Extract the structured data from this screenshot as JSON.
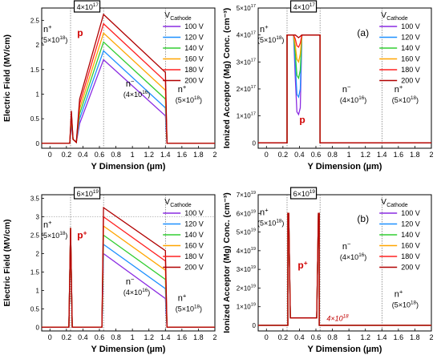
{
  "chart_data": [
    {
      "type": "line",
      "panel": "top-left",
      "xlabel": "Y Dimension (µm)",
      "ylabel": "Electric Field (MV/cm)",
      "xlim": [
        -0.1,
        2.0
      ],
      "ylim": [
        -0.1,
        2.75
      ],
      "xticks": [
        "0",
        "0.2",
        "0.4",
        "0.6",
        "0.8",
        "1",
        "1.2",
        "1.4",
        "1.6",
        "1.8",
        "2"
      ],
      "yticks": [
        "0",
        "0.5",
        "1",
        "1.5",
        "2",
        "2.5"
      ],
      "ytick_values": [
        0,
        0.5,
        1,
        1.5,
        2,
        2.5
      ],
      "grid": false,
      "legend_title": "V",
      "legend_title_sub": "Cathode",
      "legend_placement": "right",
      "vlines": [
        0.25,
        0.65,
        1.4
      ],
      "doping_box": {
        "base": "4×10",
        "exp": "17"
      },
      "region_labels": [
        {
          "text": "n",
          "sup": "+",
          "line2": "(5×10",
          "line2_exp": "18",
          "line2_end": ")"
        },
        {
          "text": "p",
          "sup": "",
          "line2": "",
          "line2_exp": "",
          "line2_end": ""
        },
        {
          "text": "n",
          "sup": "−",
          "line2": "(4×10",
          "line2_exp": "16",
          "line2_end": ")"
        },
        {
          "text": "n",
          "sup": "+",
          "line2": "(5×10",
          "line2_exp": "18",
          "line2_end": ")"
        }
      ],
      "series": [
        {
          "name": "100 V",
          "color": "#8a2be2",
          "x": [
            -0.1,
            0.24,
            0.26,
            0.28,
            0.32,
            0.36,
            0.65,
            1.4,
            1.42,
            2.0
          ],
          "y": [
            0,
            0,
            0.38,
            0.08,
            0.02,
            0.4,
            1.7,
            0.56,
            0,
            0
          ]
        },
        {
          "name": "120 V",
          "color": "#1e90ff",
          "x": [
            -0.1,
            0.24,
            0.26,
            0.28,
            0.32,
            0.36,
            0.65,
            1.4,
            1.42,
            2.0
          ],
          "y": [
            0,
            0,
            0.45,
            0.08,
            0.02,
            0.5,
            1.88,
            0.72,
            0,
            0
          ]
        },
        {
          "name": "140 V",
          "color": "#32cd32",
          "x": [
            -0.1,
            0.24,
            0.26,
            0.28,
            0.32,
            0.36,
            0.65,
            1.4,
            1.42,
            2.0
          ],
          "y": [
            0,
            0,
            0.52,
            0.08,
            0.02,
            0.6,
            2.06,
            0.9,
            0,
            0
          ]
        },
        {
          "name": "160 V",
          "color": "#ffa500",
          "x": [
            -0.1,
            0.24,
            0.26,
            0.28,
            0.32,
            0.36,
            0.65,
            1.4,
            1.42,
            2.0
          ],
          "y": [
            0,
            0,
            0.58,
            0.08,
            0.02,
            0.7,
            2.24,
            1.08,
            0,
            0
          ]
        },
        {
          "name": "180 V",
          "color": "#ff2020",
          "x": [
            -0.1,
            0.24,
            0.26,
            0.28,
            0.32,
            0.36,
            0.65,
            1.4,
            1.42,
            2.0
          ],
          "y": [
            0,
            0,
            0.63,
            0.08,
            0.02,
            0.8,
            2.43,
            1.26,
            0,
            0
          ]
        },
        {
          "name": "200 V",
          "color": "#b00000",
          "x": [
            -0.1,
            0.24,
            0.26,
            0.28,
            0.32,
            0.36,
            0.65,
            1.4,
            1.42,
            2.0
          ],
          "y": [
            0,
            0,
            0.66,
            0.08,
            0.02,
            0.9,
            2.62,
            1.44,
            0,
            0
          ]
        }
      ]
    },
    {
      "type": "line",
      "panel": "top-right",
      "xlabel": "Y Dimension (µm)",
      "ylabel": "Ionized Acceptor (Mg) Conc. (cm⁻³)",
      "xlim": [
        -0.1,
        2.0
      ],
      "ylim": [
        -2e+16,
        5e+17
      ],
      "xticks": [
        "0",
        "0.2",
        "0.4",
        "0.6",
        "0.8",
        "1",
        "1.2",
        "1.4",
        "1.6",
        "1.8",
        "2"
      ],
      "yticks": [
        "0",
        "1×10",
        "2×10",
        "3×10",
        "4×10",
        "5×10"
      ],
      "ytick_exp": [
        "",
        "17",
        "17",
        "17",
        "17",
        "17"
      ],
      "ytick_values": [
        0,
        1e+17,
        2e+17,
        3e+17,
        4e+17,
        5e+17
      ],
      "grid": false,
      "panel_tag": "(a)",
      "legend_title": "V",
      "legend_title_sub": "Cathode",
      "legend_placement": "right",
      "vlines": [
        0.25,
        0.65,
        1.4
      ],
      "doping_box": {
        "base": "4×10",
        "exp": "17"
      },
      "region_labels": [
        {
          "text": "n",
          "sup": "+",
          "line2": "(5×10",
          "line2_exp": "18",
          "line2_end": ")"
        },
        {
          "text": "p",
          "sup": "",
          "line2": "",
          "line2_exp": "",
          "line2_end": ""
        },
        {
          "text": "n",
          "sup": "−",
          "line2": "(4×10",
          "line2_exp": "16",
          "line2_end": ")"
        },
        {
          "text": "n",
          "sup": "+",
          "line2": "(5×10",
          "line2_exp": "18",
          "line2_end": ")"
        }
      ],
      "series": [
        {
          "name": "100 V",
          "color": "#8a2be2",
          "x": [
            -0.1,
            0.25,
            0.25,
            0.33,
            0.35,
            0.37,
            0.39,
            0.41,
            0.43,
            0.65,
            0.65,
            2.0
          ],
          "y": [
            0,
            0,
            4e+17,
            4e+17,
            2.4e+17,
            1.15e+17,
            1.05e+17,
            1.3e+17,
            4e+17,
            4e+17,
            0,
            0
          ]
        },
        {
          "name": "120 V",
          "color": "#1e90ff",
          "x": [
            -0.1,
            0.25,
            0.25,
            0.33,
            0.35,
            0.37,
            0.39,
            0.41,
            0.43,
            0.65,
            0.65,
            2.0
          ],
          "y": [
            0,
            0,
            4e+17,
            4e+17,
            2.9e+17,
            1.8e+17,
            1.7e+17,
            2e+17,
            4e+17,
            4e+17,
            0,
            0
          ]
        },
        {
          "name": "140 V",
          "color": "#32cd32",
          "x": [
            -0.1,
            0.25,
            0.25,
            0.33,
            0.35,
            0.37,
            0.39,
            0.41,
            0.43,
            0.65,
            0.65,
            2.0
          ],
          "y": [
            0,
            0,
            4e+17,
            4e+17,
            3.3e+17,
            2.5e+17,
            2.4e+17,
            2.7e+17,
            4e+17,
            4e+17,
            0,
            0
          ]
        },
        {
          "name": "160 V",
          "color": "#ffa500",
          "x": [
            -0.1,
            0.25,
            0.25,
            0.33,
            0.35,
            0.37,
            0.39,
            0.41,
            0.43,
            0.65,
            0.65,
            2.0
          ],
          "y": [
            0,
            0,
            4e+17,
            4e+17,
            3.6e+17,
            3.1e+17,
            3e+17,
            3.3e+17,
            4e+17,
            4e+17,
            0,
            0
          ]
        },
        {
          "name": "180 V",
          "color": "#ff2020",
          "x": [
            -0.1,
            0.25,
            0.25,
            0.33,
            0.35,
            0.37,
            0.39,
            0.41,
            0.43,
            0.65,
            0.65,
            2.0
          ],
          "y": [
            0,
            0,
            4e+17,
            4e+17,
            3.85e+17,
            3.6e+17,
            3.55e+17,
            3.7e+17,
            4e+17,
            4e+17,
            0,
            0
          ]
        },
        {
          "name": "200 V",
          "color": "#b00000",
          "x": [
            -0.1,
            0.25,
            0.25,
            0.33,
            0.35,
            0.37,
            0.39,
            0.41,
            0.43,
            0.65,
            0.65,
            2.0
          ],
          "y": [
            0,
            0,
            4e+17,
            4e+17,
            4e+17,
            3.95e+17,
            3.9e+17,
            3.95e+17,
            4e+17,
            4e+17,
            0,
            0
          ]
        }
      ]
    },
    {
      "type": "line",
      "panel": "bottom-left",
      "xlabel": "Y Dimension (µm)",
      "ylabel": "Electric Field (MV/cm)",
      "xlim": [
        -0.1,
        2.0
      ],
      "ylim": [
        -0.1,
        3.6
      ],
      "xticks": [
        "0",
        "0.2",
        "0.4",
        "0.6",
        "0.8",
        "1",
        "1.2",
        "1.4",
        "1.6",
        "1.8",
        "2"
      ],
      "yticks": [
        "0",
        "0.5",
        "1",
        "1.5",
        "2",
        "2.5",
        "3",
        "3.5"
      ],
      "ytick_values": [
        0,
        0.5,
        1,
        1.5,
        2,
        2.5,
        3,
        3.5
      ],
      "grid": false,
      "hline": 3.0,
      "legend_title": "V",
      "legend_title_sub": "Cathode",
      "legend_placement": "right",
      "vlines": [
        0.25,
        0.65,
        1.4
      ],
      "doping_box": {
        "base": "6×10",
        "exp": "19"
      },
      "region_labels": [
        {
          "text": "n",
          "sup": "+",
          "line2": "(5×10",
          "line2_exp": "18",
          "line2_end": ")"
        },
        {
          "text": "p",
          "sup": "+",
          "line2": "",
          "line2_exp": "",
          "line2_end": ""
        },
        {
          "text": "n",
          "sup": "−",
          "line2": "(4×10",
          "line2_exp": "16",
          "line2_end": ")"
        },
        {
          "text": "n",
          "sup": "+",
          "line2": "(5×10",
          "line2_exp": "18",
          "line2_end": ")"
        }
      ],
      "series": [
        {
          "name": "100 V",
          "color": "#8a2be2",
          "x": [
            -0.1,
            0.23,
            0.25,
            0.27,
            0.29,
            0.63,
            0.65,
            1.4,
            1.42,
            2.0
          ],
          "y": [
            0,
            0,
            2.7,
            0,
            0,
            0,
            2.0,
            0.78,
            0,
            0
          ]
        },
        {
          "name": "120 V",
          "color": "#1e90ff",
          "x": [
            -0.1,
            0.23,
            0.25,
            0.27,
            0.29,
            0.63,
            0.65,
            1.4,
            1.42,
            2.0
          ],
          "y": [
            0,
            0,
            2.7,
            0,
            0,
            0,
            2.25,
            1.05,
            0,
            0
          ]
        },
        {
          "name": "140 V",
          "color": "#32cd32",
          "x": [
            -0.1,
            0.23,
            0.25,
            0.27,
            0.29,
            0.63,
            0.65,
            1.4,
            1.42,
            2.0
          ],
          "y": [
            0,
            0,
            2.7,
            0,
            0,
            0,
            2.5,
            1.3,
            0,
            0
          ]
        },
        {
          "name": "160 V",
          "color": "#ffa500",
          "x": [
            -0.1,
            0.23,
            0.25,
            0.27,
            0.29,
            0.63,
            0.65,
            1.4,
            1.42,
            2.0
          ],
          "y": [
            0,
            0,
            2.7,
            0,
            0,
            0,
            2.75,
            1.55,
            0,
            0
          ]
        },
        {
          "name": "180 V",
          "color": "#ff2020",
          "x": [
            -0.1,
            0.23,
            0.25,
            0.27,
            0.29,
            0.63,
            0.65,
            1.4,
            1.42,
            2.0
          ],
          "y": [
            0,
            0,
            2.7,
            0,
            0,
            0,
            3.0,
            1.8,
            0,
            0
          ]
        },
        {
          "name": "200 V",
          "color": "#b00000",
          "x": [
            -0.1,
            0.23,
            0.25,
            0.27,
            0.29,
            0.63,
            0.65,
            1.4,
            1.42,
            2.0
          ],
          "y": [
            0,
            0,
            2.7,
            0,
            0,
            0,
            3.25,
            2.08,
            0,
            0
          ]
        }
      ]
    },
    {
      "type": "line",
      "panel": "bottom-right",
      "xlabel": "Y Dimension (µm)",
      "ylabel": "Ionized Acceptor (Mg) Conc. (cm⁻³)",
      "xlim": [
        -0.1,
        2.0
      ],
      "ylim": [
        -3e+18,
        7e+19
      ],
      "xticks": [
        "0",
        "0.2",
        "0.4",
        "0.6",
        "0.8",
        "1",
        "1.2",
        "1.4",
        "1.6",
        "1.8",
        "2"
      ],
      "yticks": [
        "0",
        "1×10",
        "2×10",
        "3×10",
        "4×10",
        "5×10",
        "6×10",
        "7×10"
      ],
      "ytick_exp": [
        "",
        "19",
        "19",
        "19",
        "19",
        "19",
        "19",
        "19"
      ],
      "ytick_values": [
        0,
        1e+19,
        2e+19,
        3e+19,
        4e+19,
        5e+19,
        6e+19,
        7e+19
      ],
      "grid": false,
      "panel_tag": "(b)",
      "legend_title": "V",
      "legend_title_sub": "Cathode",
      "legend_placement": "right",
      "vlines": [
        0.25,
        0.65,
        1.4
      ],
      "doping_box": {
        "base": "6×10",
        "exp": "19"
      },
      "annotation": {
        "text": "4×10",
        "exp": "18"
      },
      "region_labels": [
        {
          "text": "n",
          "sup": "+",
          "line2": "(5×10",
          "line2_exp": "18",
          "line2_end": ")"
        },
        {
          "text": "p",
          "sup": "+",
          "line2": "",
          "line2_exp": "",
          "line2_end": ""
        },
        {
          "text": "n",
          "sup": "−",
          "line2": "(4×10",
          "line2_exp": "16",
          "line2_end": ")"
        },
        {
          "text": "n",
          "sup": "+",
          "line2": "(5×10",
          "line2_exp": "18",
          "line2_end": ")"
        }
      ],
      "series": [
        {
          "name": "100 V",
          "color": "#8a2be2",
          "x": [
            -0.1,
            0.26,
            0.26,
            0.27,
            0.29,
            0.29,
            0.61,
            0.61,
            0.63,
            0.64,
            0.64,
            2.0
          ],
          "y": [
            0,
            0,
            6e+19,
            6e+19,
            4e+18,
            4e+18,
            4e+18,
            4e+18,
            6e+19,
            6e+19,
            0,
            0
          ]
        },
        {
          "name": "120 V",
          "color": "#1e90ff",
          "x": [
            -0.1,
            0.26,
            0.26,
            0.27,
            0.29,
            0.29,
            0.61,
            0.61,
            0.63,
            0.64,
            0.64,
            2.0
          ],
          "y": [
            0,
            0,
            6e+19,
            6e+19,
            4e+18,
            4e+18,
            4e+18,
            4e+18,
            6e+19,
            6e+19,
            0,
            0
          ]
        },
        {
          "name": "140 V",
          "color": "#32cd32",
          "x": [
            -0.1,
            0.26,
            0.26,
            0.27,
            0.29,
            0.29,
            0.61,
            0.61,
            0.63,
            0.64,
            0.64,
            2.0
          ],
          "y": [
            0,
            0,
            6e+19,
            6e+19,
            4e+18,
            4e+18,
            4e+18,
            4e+18,
            6e+19,
            6e+19,
            0,
            0
          ]
        },
        {
          "name": "160 V",
          "color": "#ffa500",
          "x": [
            -0.1,
            0.26,
            0.26,
            0.27,
            0.29,
            0.29,
            0.61,
            0.61,
            0.63,
            0.64,
            0.64,
            2.0
          ],
          "y": [
            0,
            0,
            6e+19,
            6e+19,
            4e+18,
            4e+18,
            4e+18,
            4e+18,
            6e+19,
            6e+19,
            0,
            0
          ]
        },
        {
          "name": "180 V",
          "color": "#ff2020",
          "x": [
            -0.1,
            0.26,
            0.26,
            0.27,
            0.29,
            0.29,
            0.61,
            0.61,
            0.63,
            0.64,
            0.64,
            2.0
          ],
          "y": [
            0,
            0,
            6e+19,
            6e+19,
            4e+18,
            4e+18,
            4e+18,
            4e+18,
            6e+19,
            6e+19,
            0,
            0
          ]
        },
        {
          "name": "200 V",
          "color": "#b00000",
          "x": [
            -0.1,
            0.26,
            0.26,
            0.27,
            0.29,
            0.29,
            0.61,
            0.61,
            0.63,
            0.64,
            0.64,
            2.0
          ],
          "y": [
            0,
            0,
            6e+19,
            6e+19,
            4e+18,
            4e+18,
            4e+18,
            4e+18,
            6e+19,
            6e+19,
            0,
            0
          ]
        }
      ]
    }
  ]
}
